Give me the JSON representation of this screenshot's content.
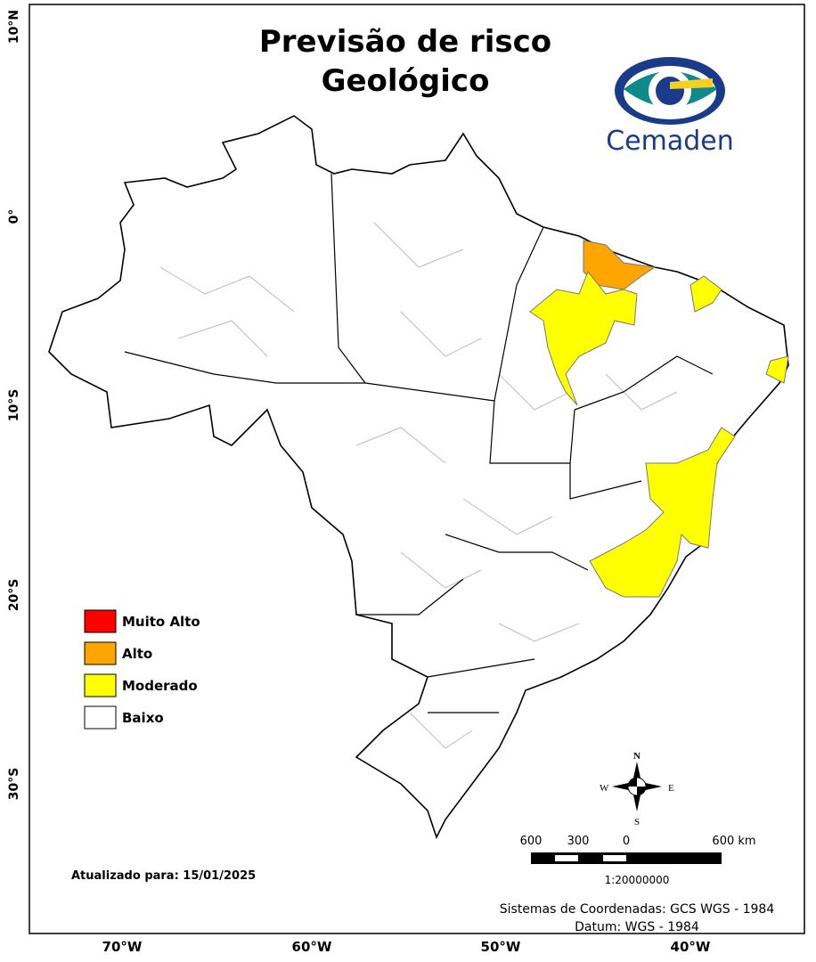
{
  "title": [
    "Previsão de risco",
    "Geológico"
  ],
  "logo": "Cemaden",
  "legend": [
    {
      "label": "Muito Alto",
      "color": "#ff0000"
    },
    {
      "label": "Alto",
      "color": "#ffa500"
    },
    {
      "label": "Moderado",
      "color": "#ffff00"
    },
    {
      "label": "Baixo",
      "color": "#ffffff"
    }
  ],
  "latitude_labels": [
    "10°N",
    "0°",
    "10°S",
    "20°S",
    "30°S"
  ],
  "longitude_labels": [
    "70°W",
    "60°W",
    "50°W",
    "40°W"
  ],
  "compass": {
    "north": "N",
    "south": "S",
    "east": "E",
    "west": "W"
  },
  "scale": {
    "labels": [
      "600",
      "300",
      "0",
      "600 km"
    ],
    "ratio": "1:20000000"
  },
  "updated": "Atualizado para: 15/01/2025",
  "crs": [
    "Sistemas de Coordenadas: GCS WGS - 1984",
    "Datum: WGS - 1984"
  ]
}
